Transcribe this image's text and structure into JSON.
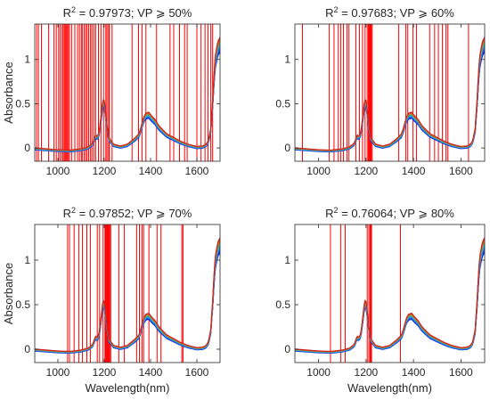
{
  "figure": {
    "colors": {
      "axis": "#262626",
      "marker_lines": "#ff0000",
      "spectra": [
        "#0b1fd6",
        "#1438e8",
        "#1a55ff",
        "#2f7fe0",
        "#2aa3c9",
        "#1fb7b0",
        "#4fb37a",
        "#c47a1e",
        "#e05a10",
        "#cc2222"
      ]
    }
  },
  "chart_data": [
    {
      "type": "line",
      "title_prefix": "R",
      "title_sup": "2",
      "title_rest": " = 0.97973; VP ⩾ 50%",
      "xlabel": "",
      "ylabel": "Absorbance",
      "xlim": [
        900,
        1700
      ],
      "ylim": [
        -0.15,
        1.4
      ],
      "xticks": [
        1000,
        1200,
        1400,
        1600
      ],
      "yticks": [
        0,
        0.5,
        1
      ],
      "ytick_labels": [
        "0",
        "0.5",
        "1"
      ],
      "grid": false,
      "selected_wavelengths": [
        908,
        916,
        929,
        960,
        983,
        993,
        1003,
        1010,
        1018,
        1023,
        1028,
        1032,
        1036,
        1041,
        1045,
        1050,
        1059,
        1073,
        1085,
        1093,
        1101,
        1105,
        1113,
        1120,
        1126,
        1133,
        1141,
        1147,
        1155,
        1163,
        1175,
        1186,
        1197,
        1207,
        1212,
        1219,
        1222,
        1234,
        1320,
        1348,
        1363,
        1380,
        1426,
        1484,
        1500,
        1525,
        1547,
        1558,
        1600,
        1618,
        1635,
        1648,
        1660,
        1668
      ]
    },
    {
      "type": "line",
      "title_prefix": "R",
      "title_sup": "2",
      "title_rest": " = 0.97683; VP ⩾ 60%",
      "xlabel": "",
      "ylabel": "",
      "xlim": [
        900,
        1700
      ],
      "ylim": [
        -0.15,
        1.4
      ],
      "xticks": [
        1000,
        1200,
        1400,
        1600
      ],
      "yticks": [
        0,
        0.5,
        1
      ],
      "ytick_labels": [
        "0",
        "0.5",
        "1"
      ],
      "grid": false,
      "selected_wavelengths": [
        932,
        1045,
        1065,
        1083,
        1093,
        1105,
        1120,
        1128,
        1157,
        1172,
        1185,
        1196,
        1205,
        1210,
        1213,
        1216,
        1219,
        1222,
        1226,
        1338,
        1368,
        1376,
        1398,
        1413,
        1468,
        1489,
        1505,
        1522,
        1537,
        1545,
        1632
      ]
    },
    {
      "type": "line",
      "title_prefix": "R",
      "title_sup": "2",
      "title_rest": " = 0.97852; VP ⩾ 70%",
      "xlabel": "Wavelength(nm)",
      "ylabel": "Absorbance",
      "xlim": [
        900,
        1700
      ],
      "ylim": [
        -0.15,
        1.4
      ],
      "xticks": [
        1000,
        1200,
        1400,
        1600
      ],
      "yticks": [
        0,
        0.5,
        1
      ],
      "ytick_labels": [
        "0",
        "0.5",
        "1"
      ],
      "grid": false,
      "selected_wavelengths": [
        1042,
        1050,
        1070,
        1090,
        1106,
        1125,
        1140,
        1170,
        1180,
        1195,
        1203,
        1206,
        1209,
        1212,
        1215,
        1218,
        1221,
        1224,
        1228,
        1263,
        1287,
        1340,
        1352,
        1363,
        1370,
        1393,
        1428,
        1445,
        1535,
        1540
      ]
    },
    {
      "type": "line",
      "title_prefix": "R",
      "title_sup": "2",
      "title_rest": " = 0.76064; VP ⩾ 80%",
      "xlabel": "Wavelength(nm)",
      "ylabel": "",
      "xlim": [
        900,
        1700
      ],
      "ylim": [
        -0.15,
        1.4
      ],
      "xticks": [
        1000,
        1200,
        1400,
        1600
      ],
      "yticks": [
        0,
        0.5,
        1
      ],
      "ytick_labels": [
        "0",
        "0.5",
        "1"
      ],
      "grid": false,
      "selected_wavelengths": [
        1050,
        1093,
        1112,
        1205,
        1212,
        1217,
        1220,
        1223,
        1345
      ]
    }
  ]
}
